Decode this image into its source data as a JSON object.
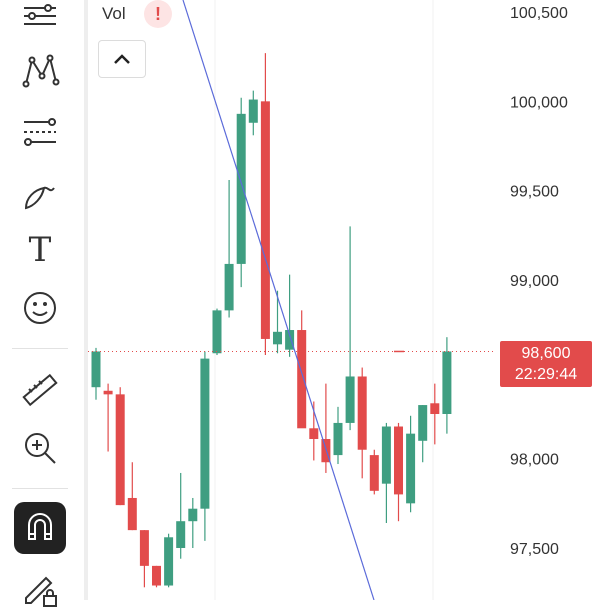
{
  "chart_data": {
    "type": "candlestick",
    "ylim": [
      97300,
      100550
    ],
    "y_ticks": [
      "100,500",
      "100,000",
      "99,500",
      "99,000",
      "98,000",
      "97,500"
    ],
    "y_tick_values": [
      100500,
      100000,
      99500,
      99000,
      98000,
      97500
    ],
    "colors": {
      "up": "#3f9e81",
      "down": "#e24b4b",
      "trendline": "#5b6bd9"
    },
    "candles": [
      {
        "o": 98400,
        "h": 98620,
        "l": 98330,
        "c": 98600
      },
      {
        "o": 98380,
        "h": 98420,
        "l": 98040,
        "c": 98360
      },
      {
        "o": 98360,
        "h": 98400,
        "l": 97740,
        "c": 97740
      },
      {
        "o": 97780,
        "h": 97980,
        "l": 97600,
        "c": 97600
      },
      {
        "o": 97600,
        "h": 97600,
        "l": 97280,
        "c": 97400
      },
      {
        "o": 97400,
        "h": 97400,
        "l": 97280,
        "c": 97290
      },
      {
        "o": 97290,
        "h": 97580,
        "l": 97280,
        "c": 97560
      },
      {
        "o": 97500,
        "h": 97920,
        "l": 97440,
        "c": 97650
      },
      {
        "o": 97650,
        "h": 97780,
        "l": 97500,
        "c": 97720
      },
      {
        "o": 97720,
        "h": 98600,
        "l": 97540,
        "c": 98560
      },
      {
        "o": 98590,
        "h": 98840,
        "l": 98580,
        "c": 98830
      },
      {
        "o": 98830,
        "h": 99560,
        "l": 98790,
        "c": 99090
      },
      {
        "o": 99090,
        "h": 100020,
        "l": 98960,
        "c": 99930
      },
      {
        "o": 99880,
        "h": 100060,
        "l": 99810,
        "c": 100010
      },
      {
        "o": 100000,
        "h": 100270,
        "l": 98580,
        "c": 98670
      },
      {
        "o": 98640,
        "h": 98940,
        "l": 98590,
        "c": 98710
      },
      {
        "o": 98610,
        "h": 99030,
        "l": 98570,
        "c": 98720
      },
      {
        "o": 98720,
        "h": 98830,
        "l": 98180,
        "c": 98170
      },
      {
        "o": 98170,
        "h": 98320,
        "l": 97990,
        "c": 98110
      },
      {
        "o": 98110,
        "h": 98420,
        "l": 97920,
        "c": 97980
      },
      {
        "o": 98020,
        "h": 98290,
        "l": 97970,
        "c": 98200
      },
      {
        "o": 98200,
        "h": 99300,
        "l": 98160,
        "c": 98460
      },
      {
        "o": 98460,
        "h": 98510,
        "l": 97890,
        "c": 98050
      },
      {
        "o": 98020,
        "h": 98050,
        "l": 97800,
        "c": 97820
      },
      {
        "o": 97860,
        "h": 98200,
        "l": 97640,
        "c": 98180
      },
      {
        "o": 98180,
        "h": 98200,
        "l": 97650,
        "c": 97800
      },
      {
        "o": 97750,
        "h": 98240,
        "l": 97700,
        "c": 98140
      },
      {
        "o": 98100,
        "h": 98300,
        "l": 97980,
        "c": 98300
      },
      {
        "o": 98310,
        "h": 98420,
        "l": 98080,
        "c": 98250
      },
      {
        "o": 98250,
        "h": 98680,
        "l": 98140,
        "c": 98600
      }
    ],
    "trendline": [
      [
        100550,
        97350
      ]
    ],
    "current_price": "98,600",
    "current_price_value": 98600,
    "countdown": "22:29:44",
    "indicator_label": "Vol"
  },
  "toolbar": {
    "icons": [
      "lines-icon",
      "polyline-icon",
      "fib-icon",
      "brush-icon",
      "text-icon",
      "emoji-icon",
      "ruler-icon",
      "zoom-icon",
      "magnet-icon",
      "lock-draw-icon"
    ],
    "text_tool_glyph": "T"
  },
  "warning_glyph": "!"
}
